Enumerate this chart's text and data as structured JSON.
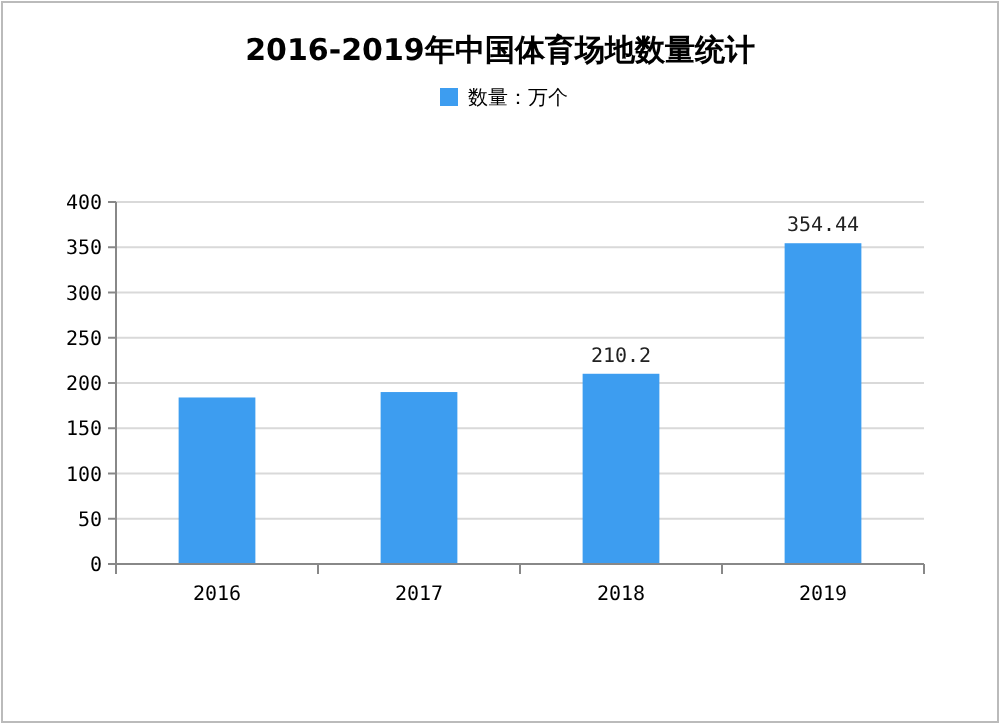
{
  "chart_data": {
    "type": "bar",
    "title": "2016-2019年中国体育场地数量统计",
    "categories": [
      "2016",
      "2017",
      "2018",
      "2019"
    ],
    "series": [
      {
        "name": "数量：万个",
        "color": "#3d9df0",
        "values": [
          184,
          190,
          210.2,
          354.44
        ],
        "value_labels": [
          null,
          null,
          "210.2",
          "354.44"
        ]
      }
    ],
    "ylim": [
      0,
      400
    ],
    "yticks": [
      0,
      50,
      100,
      150,
      200,
      250,
      300,
      350,
      400
    ],
    "grid": "y",
    "legend": "top"
  }
}
